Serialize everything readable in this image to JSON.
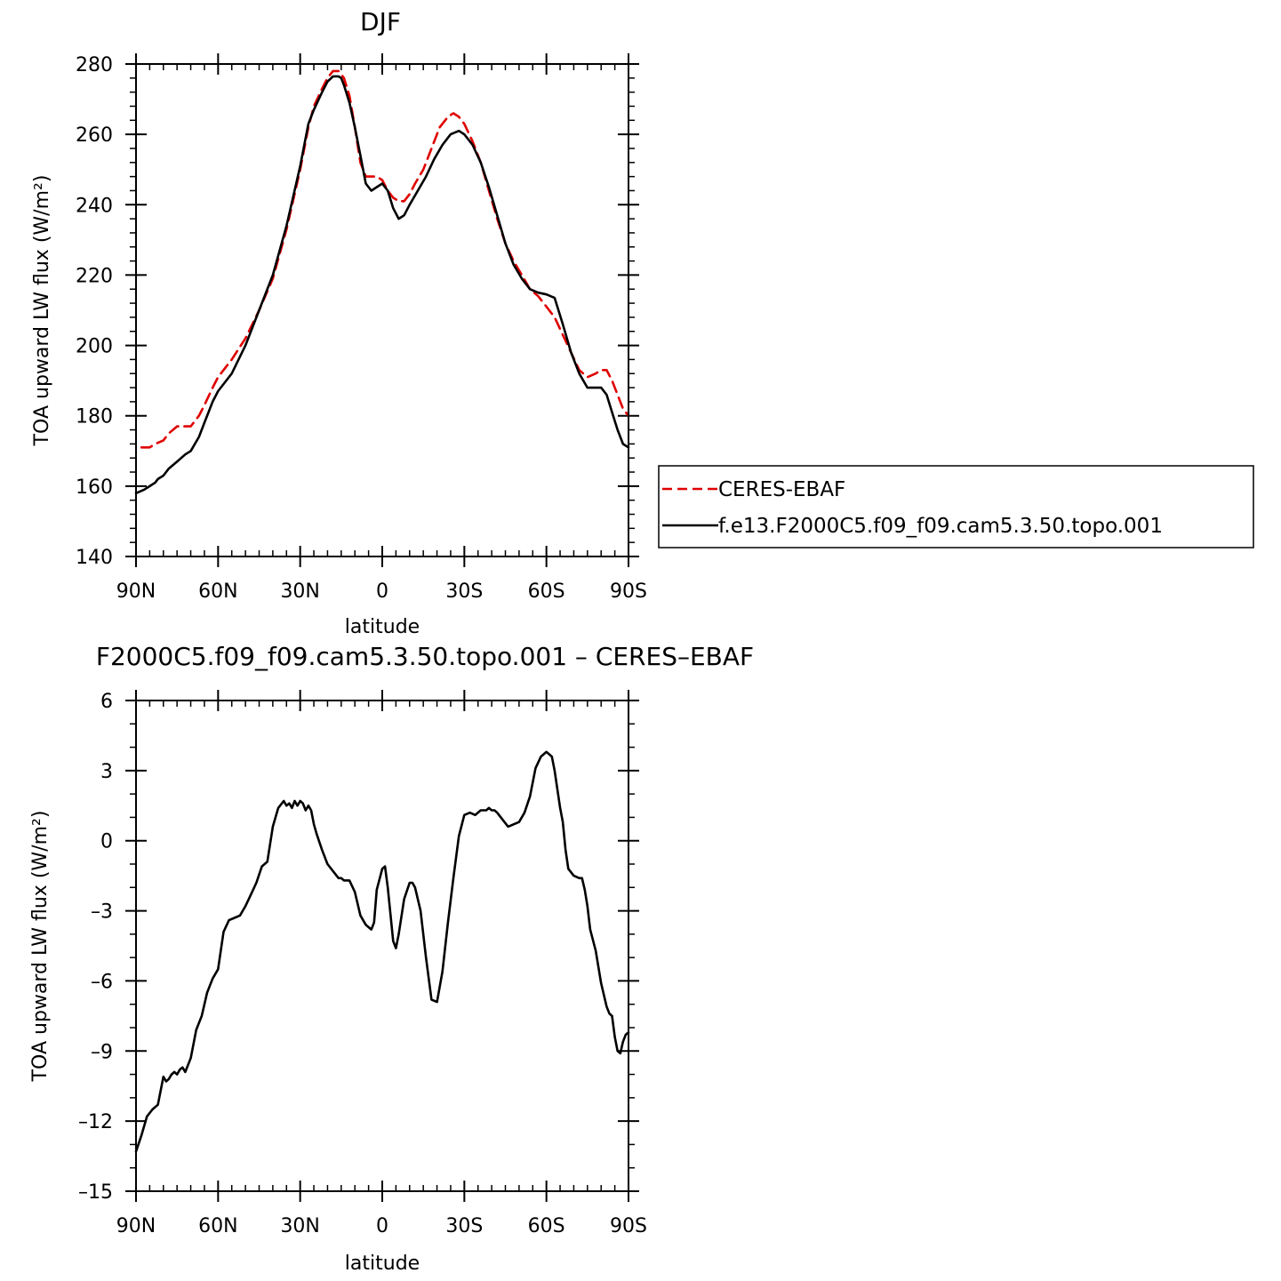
{
  "chart_data": [
    {
      "type": "line",
      "title": "DJF",
      "xlabel": "latitude",
      "ylabel": "TOA upward LW flux (W/m²)",
      "xlim": [
        -90,
        90
      ],
      "ylim": [
        140,
        280
      ],
      "xticks": [
        -90,
        -60,
        -30,
        0,
        30,
        60,
        90
      ],
      "xtick_labels": [
        "90N",
        "60N",
        "30N",
        "0",
        "30S",
        "60S",
        "90S"
      ],
      "yticks": [
        140,
        160,
        180,
        200,
        220,
        240,
        260,
        280
      ],
      "ytick_labels": [
        "140",
        "160",
        "180",
        "200",
        "220",
        "240",
        "260",
        "280"
      ],
      "legend_position": "right",
      "series": [
        {
          "name": "CERES-EBAF",
          "color": "#e00000",
          "dash": "dashed",
          "x": [
            -88,
            -85,
            -83,
            -80,
            -78,
            -75,
            -72,
            -70,
            -67,
            -65,
            -62,
            -60,
            -55,
            -50,
            -45,
            -40,
            -35,
            -30,
            -27,
            -25,
            -22,
            -20,
            -18,
            -17,
            -16,
            -14,
            -12,
            -10,
            -8,
            -6,
            -4,
            -2,
            0,
            2,
            4,
            6,
            8,
            10,
            12,
            15,
            18,
            21,
            24,
            26,
            28,
            30,
            33,
            36,
            39,
            42,
            45,
            48,
            51,
            54,
            57,
            60,
            63,
            66,
            69,
            72,
            75,
            78,
            80,
            82,
            84,
            86,
            88,
            90
          ],
          "y": [
            171,
            171,
            172,
            173,
            175,
            177,
            177,
            177,
            180,
            183,
            188,
            191,
            196,
            202,
            210,
            219,
            233,
            250,
            262,
            268,
            273,
            276,
            278,
            278,
            278,
            276,
            271,
            262,
            252,
            248,
            248,
            248,
            247,
            244,
            242,
            241,
            241,
            243,
            246,
            250,
            256,
            262,
            265,
            266,
            265,
            263,
            258,
            252,
            244,
            236,
            229,
            224,
            220,
            216,
            214,
            211,
            208,
            203,
            198,
            193,
            191,
            192,
            193,
            193,
            190,
            186,
            182,
            180
          ]
        },
        {
          "name": "f.e13.F2000C5.f09_f09.cam5.3.50.topo.001",
          "color": "#000000",
          "dash": "solid",
          "x": [
            -90,
            -87,
            -85,
            -83,
            -82,
            -80,
            -78,
            -75,
            -72,
            -70,
            -67,
            -65,
            -62,
            -60,
            -55,
            -50,
            -45,
            -40,
            -35,
            -30,
            -27,
            -25,
            -22,
            -20,
            -18,
            -16,
            -15,
            -14,
            -12,
            -10,
            -8,
            -6,
            -4,
            -2,
            0,
            2,
            4,
            6,
            8,
            10,
            13,
            16,
            19,
            22,
            25,
            28,
            30,
            33,
            36,
            39,
            42,
            45,
            48,
            51,
            54,
            57,
            60,
            63,
            66,
            69,
            72,
            75,
            78,
            80,
            82,
            84,
            86,
            88,
            90
          ],
          "y": [
            158,
            159,
            160,
            161,
            162,
            163,
            165,
            167,
            169,
            170,
            174,
            178,
            184,
            187,
            192,
            200,
            210,
            220,
            234,
            251,
            263,
            267,
            272,
            275,
            276.5,
            276.5,
            276,
            274,
            269,
            262,
            254,
            246,
            244,
            245,
            246,
            244,
            239,
            236,
            237,
            240,
            244,
            248,
            253,
            257,
            260,
            261,
            260,
            257,
            252,
            245,
            237,
            229,
            223,
            219,
            216,
            215,
            214.5,
            213.5,
            206,
            198,
            192,
            188,
            188,
            188,
            186,
            181,
            176,
            172,
            171
          ]
        }
      ]
    },
    {
      "type": "line",
      "title": "F2000C5.f09_f09.cam5.3.50.topo.001 – CERES–EBAF",
      "xlabel": "latitude",
      "ylabel": "TOA upward LW flux (W/m²)",
      "xlim": [
        -90,
        90
      ],
      "ylim": [
        -15,
        6
      ],
      "xticks": [
        -90,
        -60,
        -30,
        0,
        30,
        60,
        90
      ],
      "xtick_labels": [
        "90N",
        "60N",
        "30N",
        "0",
        "30S",
        "60S",
        "90S"
      ],
      "yticks": [
        -15,
        -12,
        -9,
        -6,
        -3,
        0,
        3,
        6
      ],
      "ytick_labels": [
        "–15",
        "–12",
        "–9",
        "–6",
        "–3",
        "0",
        "3",
        "6"
      ],
      "series": [
        {
          "color": "#000000",
          "dash": "solid",
          "x": [
            -90,
            -88,
            -86,
            -84,
            -82,
            -80,
            -79,
            -78,
            -77,
            -76,
            -75,
            -74,
            -73,
            -72,
            -70,
            -68,
            -66,
            -64,
            -62,
            -60,
            -58,
            -56,
            -54,
            -52,
            -50,
            -48,
            -46,
            -44,
            -42,
            -40,
            -38,
            -36,
            -35,
            -34,
            -33,
            -32,
            -31,
            -30,
            -29,
            -28,
            -27,
            -26,
            -25,
            -24,
            -22,
            -20,
            -18,
            -16,
            -15,
            -14,
            -12,
            -10,
            -8,
            -6,
            -5,
            -4,
            -3,
            -2,
            0,
            1,
            2,
            4,
            5,
            6,
            8,
            10,
            11,
            12,
            14,
            16,
            18,
            20,
            22,
            24,
            26,
            28,
            30,
            32,
            34,
            36,
            38,
            39,
            40,
            41,
            42,
            44,
            46,
            48,
            50,
            52,
            54,
            56,
            58,
            60,
            62,
            63,
            64,
            65,
            66,
            67,
            68,
            70,
            72,
            73,
            74,
            75,
            76,
            78,
            80,
            82,
            83,
            84,
            85,
            86,
            87,
            88,
            89,
            90
          ],
          "y": [
            -13.3,
            -12.6,
            -11.8,
            -11.5,
            -11.3,
            -10.1,
            -10.3,
            -10.2,
            -10.0,
            -9.9,
            -10.0,
            -9.8,
            -9.7,
            -9.9,
            -9.3,
            -8.1,
            -7.5,
            -6.5,
            -5.9,
            -5.5,
            -3.9,
            -3.4,
            -3.3,
            -3.2,
            -2.8,
            -2.3,
            -1.8,
            -1.1,
            -0.9,
            0.6,
            1.4,
            1.7,
            1.5,
            1.6,
            1.4,
            1.7,
            1.5,
            1.7,
            1.6,
            1.3,
            1.5,
            1.3,
            0.7,
            0.3,
            -0.4,
            -1.0,
            -1.3,
            -1.6,
            -1.6,
            -1.7,
            -1.7,
            -2.2,
            -3.2,
            -3.6,
            -3.7,
            -3.8,
            -3.5,
            -2.1,
            -1.2,
            -1.1,
            -2.0,
            -4.3,
            -4.6,
            -4.0,
            -2.5,
            -1.8,
            -1.8,
            -2.0,
            -3.0,
            -5.0,
            -6.8,
            -6.9,
            -5.6,
            -3.5,
            -1.6,
            0.2,
            1.1,
            1.2,
            1.1,
            1.3,
            1.3,
            1.4,
            1.3,
            1.3,
            1.2,
            0.9,
            0.6,
            0.7,
            0.8,
            1.2,
            1.9,
            3.1,
            3.6,
            3.8,
            3.6,
            3.0,
            2.2,
            1.4,
            0.8,
            -0.4,
            -1.2,
            -1.5,
            -1.6,
            -1.6,
            -2.1,
            -2.8,
            -3.8,
            -4.7,
            -6.1,
            -7.1,
            -7.4,
            -7.5,
            -8.4,
            -9.0,
            -9.1,
            -8.6,
            -8.3,
            -8.2
          ]
        }
      ]
    }
  ]
}
